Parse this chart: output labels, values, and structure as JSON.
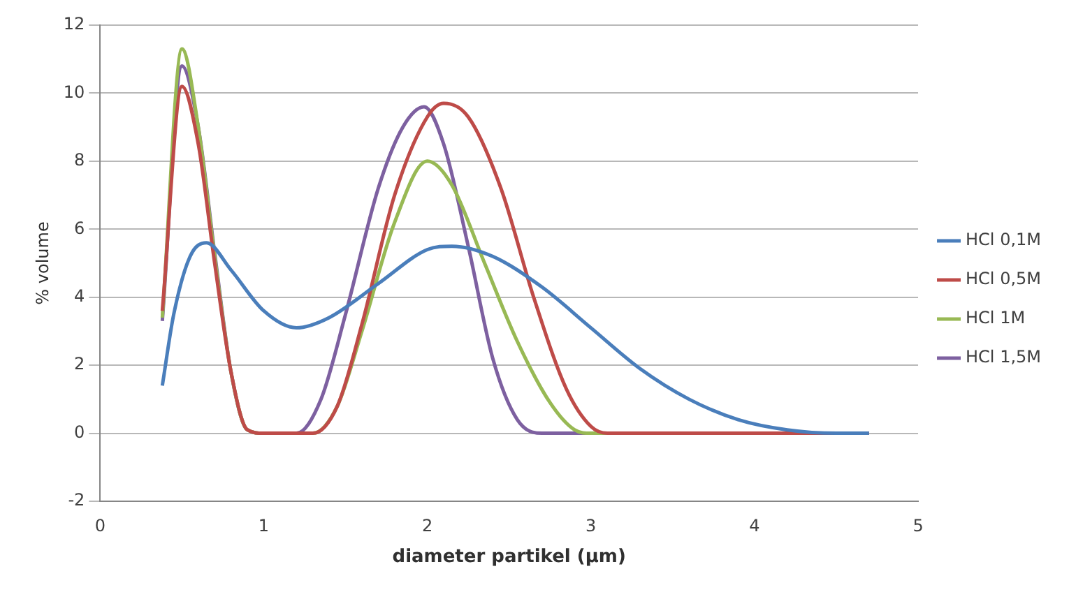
{
  "chart_data": {
    "type": "line",
    "xlabel": "diameter partikel (µm)",
    "ylabel": "% volume",
    "xlim": [
      0,
      5
    ],
    "xticks": [
      0,
      1,
      2,
      3,
      4,
      5
    ],
    "ylim": [
      -2,
      12
    ],
    "yticks": [
      -2,
      0,
      2,
      4,
      6,
      8,
      10,
      12
    ],
    "grid": "y",
    "legend": "right",
    "marker": "none",
    "line_style": "solid",
    "series": [
      {
        "name": "HCl 0,1M",
        "color": "#4a7ebb",
        "x": [
          0.38,
          0.45,
          0.55,
          0.65,
          0.8,
          1.0,
          1.2,
          1.4,
          1.7,
          2.0,
          2.15,
          2.4,
          2.7,
          3.0,
          3.3,
          3.6,
          3.9,
          4.2,
          4.5,
          4.7
        ],
        "values": [
          1.4,
          3.5,
          5.2,
          5.6,
          4.8,
          3.6,
          3.1,
          3.4,
          4.4,
          5.4,
          5.5,
          5.2,
          4.3,
          3.1,
          1.9,
          1.0,
          0.4,
          0.1,
          0,
          0
        ]
      },
      {
        "name": "HCl 0,5M",
        "color": "#be4b48",
        "x": [
          0.38,
          0.5,
          0.6,
          0.7,
          0.8,
          0.9,
          1.0,
          1.3,
          1.45,
          1.6,
          1.8,
          2.0,
          2.1,
          2.25,
          2.45,
          2.65,
          2.85,
          3.0,
          3.1,
          4.7
        ],
        "values": [
          3.6,
          10.2,
          8.5,
          5,
          1.8,
          0.1,
          0,
          0,
          0.8,
          3.2,
          7,
          9.3,
          9.7,
          9.3,
          7.2,
          4,
          1.3,
          0.2,
          0,
          0
        ]
      },
      {
        "name": "HCl 1M",
        "color": "#98b954",
        "x": [
          0.38,
          0.5,
          0.6,
          0.7,
          0.8,
          0.9,
          1.0,
          1.3,
          1.45,
          1.6,
          1.8,
          2.0,
          2.15,
          2.35,
          2.55,
          2.75,
          2.9,
          3.0,
          4.7
        ],
        "values": [
          3.4,
          11.3,
          9,
          5.2,
          1.8,
          0.1,
          0,
          0,
          0.8,
          3,
          6.2,
          8.0,
          7.3,
          5,
          2.7,
          0.9,
          0.1,
          0,
          0
        ]
      },
      {
        "name": "HCl 1,5M",
        "color": "#7d60a0",
        "x": [
          0.38,
          0.5,
          0.6,
          0.7,
          0.8,
          0.9,
          1.0,
          1.2,
          1.35,
          1.5,
          1.7,
          1.85,
          1.98,
          2.1,
          2.25,
          2.4,
          2.55,
          2.7,
          4.7
        ],
        "values": [
          3.3,
          10.8,
          9,
          5.3,
          1.8,
          0.1,
          0,
          0,
          1,
          3.5,
          7.2,
          9,
          9.6,
          8.5,
          5.5,
          2.2,
          0.4,
          0,
          0
        ]
      }
    ]
  }
}
